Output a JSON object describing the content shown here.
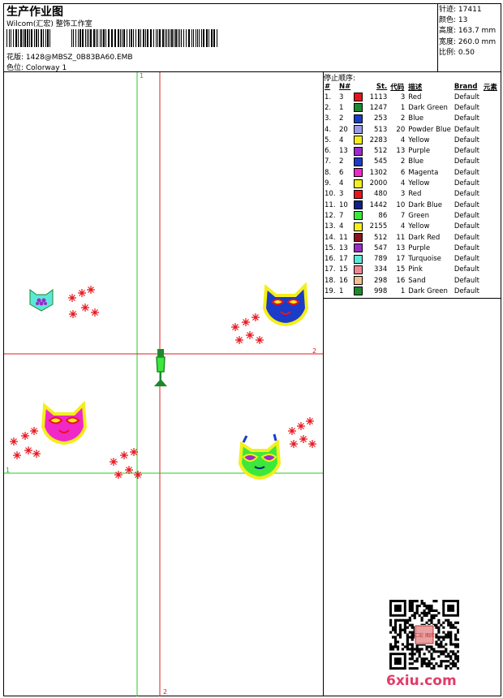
{
  "header": {
    "title": "生产作业图",
    "company": "Wilcom(汇宏) 整饰工作室",
    "file_label": "花版: 1428@MBSZ_0B83BA60.EMB",
    "colorway_label": "色位: Colorway 1"
  },
  "stats": [
    {
      "label": "针迹:",
      "value": "17411"
    },
    {
      "label": "颜色:",
      "value": "13"
    },
    {
      "label": "高度:",
      "value": "163.7 mm"
    },
    {
      "label": "宽度:",
      "value": "260.0 mm"
    },
    {
      "label": "比例:",
      "value": "0.50"
    }
  ],
  "stop_sequence": {
    "title": "停止顺序:",
    "headers": [
      "#",
      "N#",
      "",
      "St.",
      "代码",
      "描述",
      "Brand",
      "元素"
    ],
    "rows": [
      {
        "seq": "1.",
        "n": "3",
        "color": "#e8141c",
        "st": "1113",
        "code": "3",
        "desc": "Red",
        "brand": "Default"
      },
      {
        "seq": "2.",
        "n": "1",
        "color": "#1c8a2c",
        "st": "1247",
        "code": "1",
        "desc": "Dark Green",
        "brand": "Default"
      },
      {
        "seq": "3.",
        "n": "2",
        "color": "#1a3cc8",
        "st": "253",
        "code": "2",
        "desc": "Blue",
        "brand": "Default"
      },
      {
        "seq": "4.",
        "n": "20",
        "color": "#9a9ae8",
        "st": "513",
        "code": "20",
        "desc": "Powder Blue",
        "brand": "Default"
      },
      {
        "seq": "5.",
        "n": "4",
        "color": "#f4ee1c",
        "st": "2283",
        "code": "4",
        "desc": "Yellow",
        "brand": "Default"
      },
      {
        "seq": "6.",
        "n": "13",
        "color": "#9a2cc8",
        "st": "512",
        "code": "13",
        "desc": "Purple",
        "brand": "Default"
      },
      {
        "seq": "7.",
        "n": "2",
        "color": "#1a3cc8",
        "st": "545",
        "code": "2",
        "desc": "Blue",
        "brand": "Default"
      },
      {
        "seq": "8.",
        "n": "6",
        "color": "#f028c8",
        "st": "1302",
        "code": "6",
        "desc": "Magenta",
        "brand": "Default"
      },
      {
        "seq": "9.",
        "n": "4",
        "color": "#f4ee1c",
        "st": "2000",
        "code": "4",
        "desc": "Yellow",
        "brand": "Default"
      },
      {
        "seq": "10.",
        "n": "3",
        "color": "#e8141c",
        "st": "480",
        "code": "3",
        "desc": "Red",
        "brand": "Default"
      },
      {
        "seq": "11.",
        "n": "10",
        "color": "#10208a",
        "st": "1442",
        "code": "10",
        "desc": "Dark Blue",
        "brand": "Default"
      },
      {
        "seq": "12.",
        "n": "7",
        "color": "#3ce83c",
        "st": "86",
        "code": "7",
        "desc": "Green",
        "brand": "Default"
      },
      {
        "seq": "13.",
        "n": "4",
        "color": "#f4ee1c",
        "st": "2155",
        "code": "4",
        "desc": "Yellow",
        "brand": "Default"
      },
      {
        "seq": "14.",
        "n": "11",
        "color": "#8a1420",
        "st": "512",
        "code": "11",
        "desc": "Dark Red",
        "brand": "Default"
      },
      {
        "seq": "15.",
        "n": "13",
        "color": "#9a2cc8",
        "st": "547",
        "code": "13",
        "desc": "Purple",
        "brand": "Default"
      },
      {
        "seq": "16.",
        "n": "17",
        "color": "#5ce8d8",
        "st": "789",
        "code": "17",
        "desc": "Turquoise",
        "brand": "Default"
      },
      {
        "seq": "17.",
        "n": "15",
        "color": "#f08890",
        "st": "334",
        "code": "15",
        "desc": "Pink",
        "brand": "Default"
      },
      {
        "seq": "18.",
        "n": "16",
        "color": "#f4c090",
        "st": "298",
        "code": "16",
        "desc": "Sand",
        "brand": "Default"
      },
      {
        "seq": "19.",
        "n": "1",
        "color": "#1c8a2c",
        "st": "998",
        "code": "1",
        "desc": "Dark Green",
        "brand": "Default"
      }
    ]
  },
  "canvas": {
    "guide_labels": {
      "green_v_top": "1",
      "red_h_right": "2",
      "green_h_left": "1",
      "red_v_bottom": "2"
    },
    "guide_colors": {
      "green": "#22cc22",
      "red": "#dd2222"
    }
  },
  "watermark": {
    "logo_text": "6xiu.com",
    "qr_stamp": "汇宏 图库"
  }
}
